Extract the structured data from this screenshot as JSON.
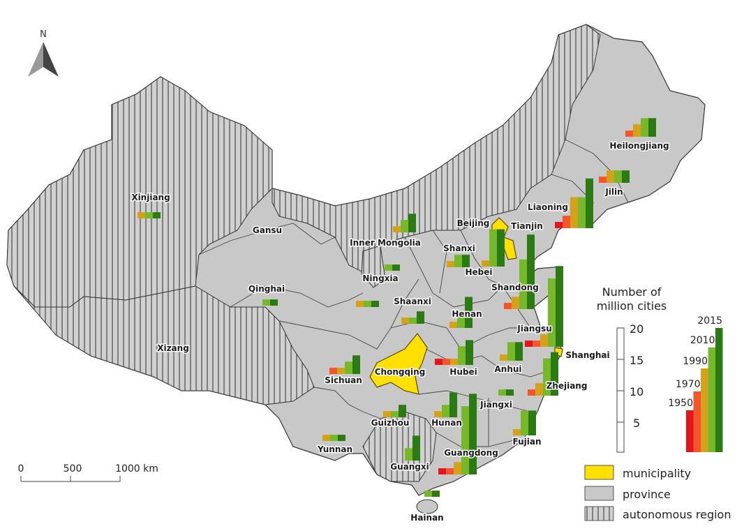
{
  "north_arrow": {
    "label": "N"
  },
  "scale_bar": {
    "ticks": [
      "0",
      "500",
      "1000 km"
    ]
  },
  "legend": {
    "size_title_line1": "Number of",
    "size_title_line2": "million cities",
    "size_ticks": [
      "20",
      "15",
      "10",
      "5"
    ],
    "years": [
      "1950",
      "1970",
      "1990",
      "2010",
      "2015"
    ],
    "year_colors": [
      "#e2151d",
      "#f4552b",
      "#d4a21a",
      "#77b82a",
      "#2b7a14"
    ],
    "categories": [
      {
        "label": "municipality",
        "color": "#ffe000"
      },
      {
        "label": "province",
        "color": "#c8c8c8"
      },
      {
        "label": "autonomous region",
        "pattern": "vertical-hatch"
      }
    ]
  },
  "labels": {
    "xinjiang": "Xinjiang",
    "xizang": "Xizang",
    "qinghai": "Qinghai",
    "gansu": "Gansu",
    "inner_mongolia": "Inner Mongolia",
    "ningxia": "Ningxia",
    "shaanxi": "Shaanxi",
    "shanxi": "Shanxi",
    "beijing": "Beijing",
    "tianjin": "Tianjin",
    "hebei": "Hebei",
    "liaoning": "Liaoning",
    "jilin": "Jilin",
    "heilongjiang": "Heilongjiang",
    "shandong": "Shandong",
    "henan": "Henan",
    "jiangsu": "Jiangsu",
    "shanghai": "Shanghai",
    "anhui": "Anhui",
    "hubei": "Hubei",
    "chongqing": "Chongqing",
    "sichuan": "Sichuan",
    "zhejiang": "Zhejiang",
    "jiangxi": "Jiangxi",
    "hunan": "Hunan",
    "guizhou": "Guizhou",
    "yunnan": "Yunnan",
    "guangxi": "Guangxi",
    "guangdong": "Guangdong",
    "fujian": "Fujian",
    "hainan": "Hainan"
  },
  "million_cities": {
    "years": [
      1950,
      1970,
      1990,
      2010,
      2015
    ],
    "heilongjiang": [
      0,
      1,
      2,
      3,
      3
    ],
    "jilin": [
      0,
      1,
      2,
      2,
      2
    ],
    "liaoning": [
      1,
      2,
      5,
      5,
      8
    ],
    "hebei": [
      0,
      0,
      1,
      6,
      6
    ],
    "shanxi": [
      0,
      0,
      1,
      2,
      2
    ],
    "shandong": [
      0,
      1,
      2,
      8,
      12
    ],
    "jiangsu": [
      1,
      1,
      2,
      11,
      13
    ],
    "henan": [
      0,
      0,
      1,
      2,
      5
    ],
    "hubei": [
      1,
      1,
      1,
      3,
      4
    ],
    "anhui": [
      0,
      0,
      1,
      3,
      3
    ],
    "zhejiang": [
      0,
      1,
      2,
      6,
      7
    ],
    "jiangxi": [
      0,
      0,
      0,
      1,
      1
    ],
    "hunan": [
      0,
      0,
      1,
      2,
      4
    ],
    "guangdong": [
      1,
      1,
      2,
      11,
      13
    ],
    "fujian": [
      0,
      0,
      1,
      4,
      4
    ],
    "guangxi": [
      0,
      0,
      0,
      2,
      4
    ],
    "sichuan": [
      0,
      1,
      1,
      2,
      3
    ],
    "shaanxi": [
      0,
      0,
      1,
      1,
      2
    ],
    "gansu": [
      0,
      0,
      1,
      1,
      1
    ],
    "ningxia": [
      0,
      0,
      0,
      1,
      1
    ],
    "inner_mongolia": [
      0,
      0,
      1,
      2,
      3
    ],
    "xinjiang": [
      0,
      0,
      1,
      1,
      1
    ],
    "qinghai": [
      0,
      0,
      0,
      1,
      1
    ],
    "yunnan": [
      0,
      0,
      1,
      1,
      1
    ],
    "guizhou": [
      0,
      0,
      1,
      1,
      2
    ],
    "hainan": [
      0,
      0,
      0,
      1,
      1
    ]
  }
}
